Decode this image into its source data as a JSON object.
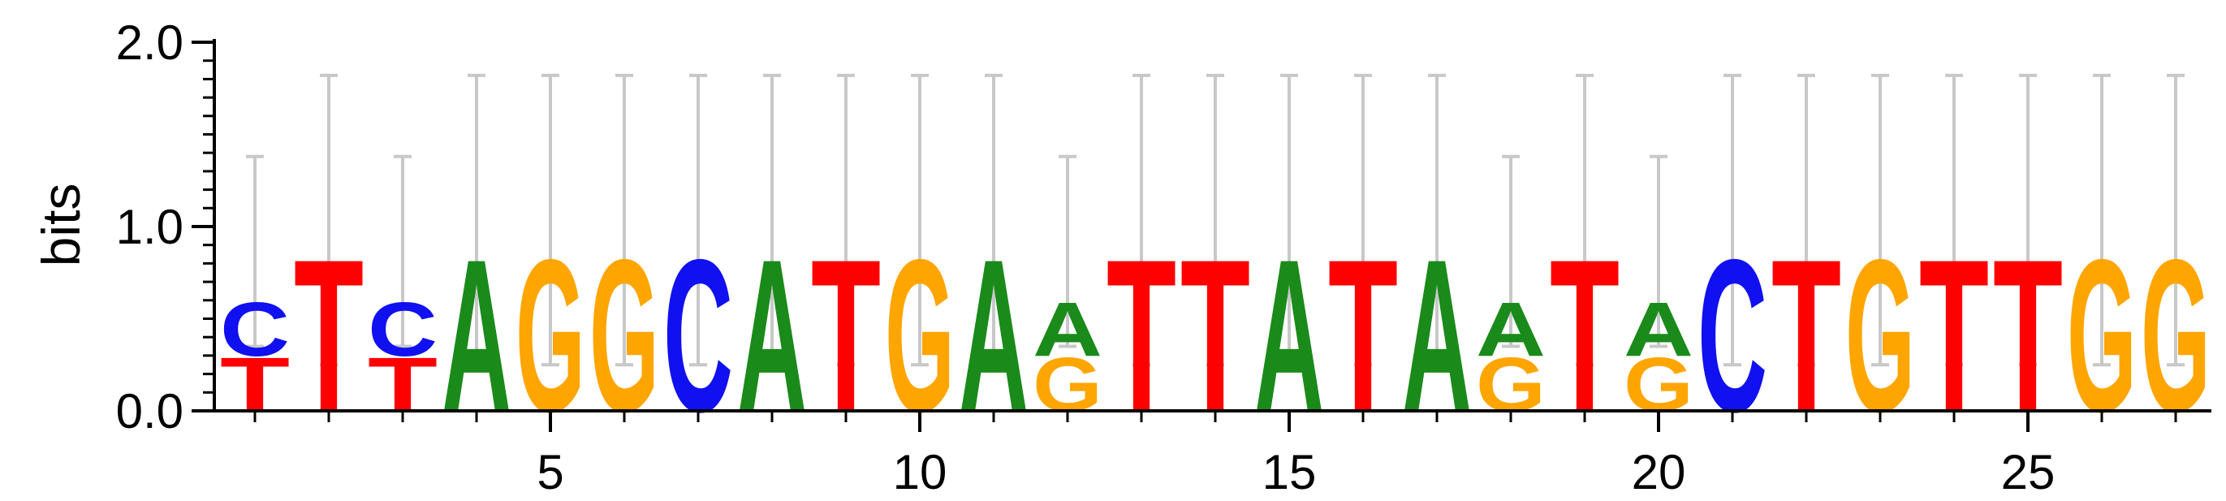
{
  "chart_data": {
    "type": "sequence-logo",
    "ylabel": "bits",
    "ylim": [
      0,
      2.0
    ],
    "yticks": [
      {
        "value": 0.0,
        "label": "0.0"
      },
      {
        "value": 1.0,
        "label": "1.0"
      },
      {
        "value": 2.0,
        "label": "2.0"
      }
    ],
    "xticks": [
      {
        "value": 5,
        "label": "5"
      },
      {
        "value": 10,
        "label": "10"
      },
      {
        "value": 15,
        "label": "15"
      },
      {
        "value": 20,
        "label": "20"
      },
      {
        "value": 25,
        "label": "25"
      }
    ],
    "colors": {
      "A": "#1a8a1a",
      "C": "#1010f0",
      "G": "#ffa500",
      "T": "#ff0000"
    },
    "positions": [
      {
        "pos": 1,
        "letters": [
          {
            "base": "T",
            "height": 0.3
          },
          {
            "base": "C",
            "height": 0.3
          }
        ],
        "error": [
          0.35,
          1.38
        ]
      },
      {
        "pos": 2,
        "letters": [
          {
            "base": "T",
            "height": 0.85
          }
        ],
        "error": [
          0.25,
          1.82
        ]
      },
      {
        "pos": 3,
        "letters": [
          {
            "base": "T",
            "height": 0.3
          },
          {
            "base": "C",
            "height": 0.3
          }
        ],
        "error": [
          0.35,
          1.38
        ]
      },
      {
        "pos": 4,
        "letters": [
          {
            "base": "A",
            "height": 0.85
          }
        ],
        "error": [
          0.25,
          1.82
        ]
      },
      {
        "pos": 5,
        "letters": [
          {
            "base": "G",
            "height": 0.85
          }
        ],
        "error": [
          0.25,
          1.82
        ]
      },
      {
        "pos": 6,
        "letters": [
          {
            "base": "G",
            "height": 0.85
          }
        ],
        "error": [
          0.25,
          1.82
        ]
      },
      {
        "pos": 7,
        "letters": [
          {
            "base": "C",
            "height": 0.85
          }
        ],
        "error": [
          0.25,
          1.82
        ]
      },
      {
        "pos": 8,
        "letters": [
          {
            "base": "A",
            "height": 0.85
          }
        ],
        "error": [
          0.25,
          1.82
        ]
      },
      {
        "pos": 9,
        "letters": [
          {
            "base": "T",
            "height": 0.85
          }
        ],
        "error": [
          0.25,
          1.82
        ]
      },
      {
        "pos": 10,
        "letters": [
          {
            "base": "G",
            "height": 0.85
          }
        ],
        "error": [
          0.25,
          1.82
        ]
      },
      {
        "pos": 11,
        "letters": [
          {
            "base": "A",
            "height": 0.85
          }
        ],
        "error": [
          0.25,
          1.82
        ]
      },
      {
        "pos": 12,
        "letters": [
          {
            "base": "G",
            "height": 0.3
          },
          {
            "base": "A",
            "height": 0.3
          }
        ],
        "error": [
          0.35,
          1.38
        ]
      },
      {
        "pos": 13,
        "letters": [
          {
            "base": "T",
            "height": 0.85
          }
        ],
        "error": [
          0.25,
          1.82
        ]
      },
      {
        "pos": 14,
        "letters": [
          {
            "base": "T",
            "height": 0.85
          }
        ],
        "error": [
          0.25,
          1.82
        ]
      },
      {
        "pos": 15,
        "letters": [
          {
            "base": "A",
            "height": 0.85
          }
        ],
        "error": [
          0.25,
          1.82
        ]
      },
      {
        "pos": 16,
        "letters": [
          {
            "base": "T",
            "height": 0.85
          }
        ],
        "error": [
          0.25,
          1.82
        ]
      },
      {
        "pos": 17,
        "letters": [
          {
            "base": "A",
            "height": 0.85
          }
        ],
        "error": [
          0.25,
          1.82
        ]
      },
      {
        "pos": 18,
        "letters": [
          {
            "base": "G",
            "height": 0.3
          },
          {
            "base": "A",
            "height": 0.3
          }
        ],
        "error": [
          0.35,
          1.38
        ]
      },
      {
        "pos": 19,
        "letters": [
          {
            "base": "T",
            "height": 0.85
          }
        ],
        "error": [
          0.25,
          1.82
        ]
      },
      {
        "pos": 20,
        "letters": [
          {
            "base": "G",
            "height": 0.3
          },
          {
            "base": "A",
            "height": 0.3
          }
        ],
        "error": [
          0.35,
          1.38
        ]
      },
      {
        "pos": 21,
        "letters": [
          {
            "base": "C",
            "height": 0.85
          }
        ],
        "error": [
          0.25,
          1.82
        ]
      },
      {
        "pos": 22,
        "letters": [
          {
            "base": "T",
            "height": 0.85
          }
        ],
        "error": [
          0.25,
          1.82
        ]
      },
      {
        "pos": 23,
        "letters": [
          {
            "base": "G",
            "height": 0.85
          }
        ],
        "error": [
          0.25,
          1.82
        ]
      },
      {
        "pos": 24,
        "letters": [
          {
            "base": "T",
            "height": 0.85
          }
        ],
        "error": [
          0.25,
          1.82
        ]
      },
      {
        "pos": 25,
        "letters": [
          {
            "base": "T",
            "height": 0.85
          }
        ],
        "error": [
          0.25,
          1.82
        ]
      },
      {
        "pos": 26,
        "letters": [
          {
            "base": "G",
            "height": 0.85
          }
        ],
        "error": [
          0.25,
          1.82
        ]
      },
      {
        "pos": 27,
        "letters": [
          {
            "base": "G",
            "height": 0.85
          }
        ],
        "error": [
          0.25,
          1.82
        ]
      }
    ]
  }
}
